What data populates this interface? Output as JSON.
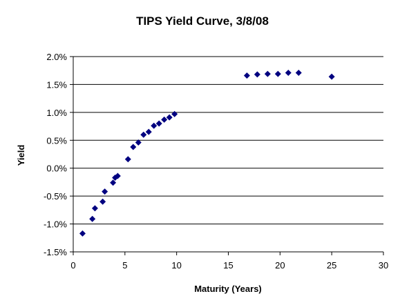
{
  "chart_data": {
    "type": "scatter",
    "title": "TIPS Yield Curve, 3/8/08",
    "xlabel": "Maturity (Years)",
    "ylabel": "Yield",
    "xlim": [
      0,
      30
    ],
    "ylim": [
      -1.5,
      2.0
    ],
    "x_ticks": [
      "0",
      "5",
      "10",
      "15",
      "20",
      "25",
      "30"
    ],
    "y_ticks": [
      "-1.5%",
      "-1.0%",
      "-0.5%",
      "0.0%",
      "0.5%",
      "1.0%",
      "1.5%",
      "2.0%"
    ],
    "grid": "horizontal",
    "legend": "none",
    "marker": "diamond",
    "colors": {
      "marker": "#000080",
      "grid": "#000000",
      "axis": "#000000",
      "background": "#ffffff"
    },
    "points": [
      {
        "x": 0.9,
        "y": -1.17
      },
      {
        "x": 1.85,
        "y": -0.91
      },
      {
        "x": 2.1,
        "y": -0.72
      },
      {
        "x": 2.85,
        "y": -0.6
      },
      {
        "x": 3.05,
        "y": -0.42
      },
      {
        "x": 3.85,
        "y": -0.26
      },
      {
        "x": 4.05,
        "y": -0.17
      },
      {
        "x": 4.3,
        "y": -0.14
      },
      {
        "x": 5.3,
        "y": 0.16
      },
      {
        "x": 5.8,
        "y": 0.38
      },
      {
        "x": 6.3,
        "y": 0.46
      },
      {
        "x": 6.8,
        "y": 0.6
      },
      {
        "x": 7.3,
        "y": 0.65
      },
      {
        "x": 7.8,
        "y": 0.76
      },
      {
        "x": 8.3,
        "y": 0.8
      },
      {
        "x": 8.8,
        "y": 0.87
      },
      {
        "x": 9.3,
        "y": 0.91
      },
      {
        "x": 9.8,
        "y": 0.97
      },
      {
        "x": 16.8,
        "y": 1.66
      },
      {
        "x": 17.8,
        "y": 1.68
      },
      {
        "x": 18.8,
        "y": 1.69
      },
      {
        "x": 19.8,
        "y": 1.69
      },
      {
        "x": 20.8,
        "y": 1.71
      },
      {
        "x": 21.8,
        "y": 1.71
      },
      {
        "x": 25.0,
        "y": 1.64
      }
    ]
  }
}
